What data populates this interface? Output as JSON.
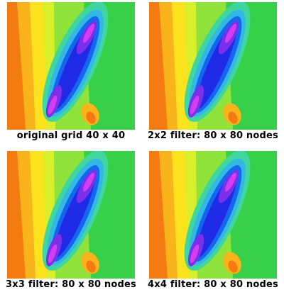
{
  "figure": {
    "panels": [
      {
        "caption": "original grid 40 x 40"
      },
      {
        "caption": "2x2 filter: 80 x 80 nodes"
      },
      {
        "caption": "3x3 filter: 80 x 80 nodes"
      },
      {
        "caption": "4x4 filter: 80 x 80 nodes"
      }
    ],
    "colormap": [
      "#e8420e",
      "#f47a12",
      "#f8b41a",
      "#fde21e",
      "#d9ef2a",
      "#8fe33a",
      "#38d048",
      "#3fd6a0",
      "#33b8e6",
      "#1466ee",
      "#1f2ae6",
      "#7a30ea",
      "#d43ef0"
    ]
  }
}
